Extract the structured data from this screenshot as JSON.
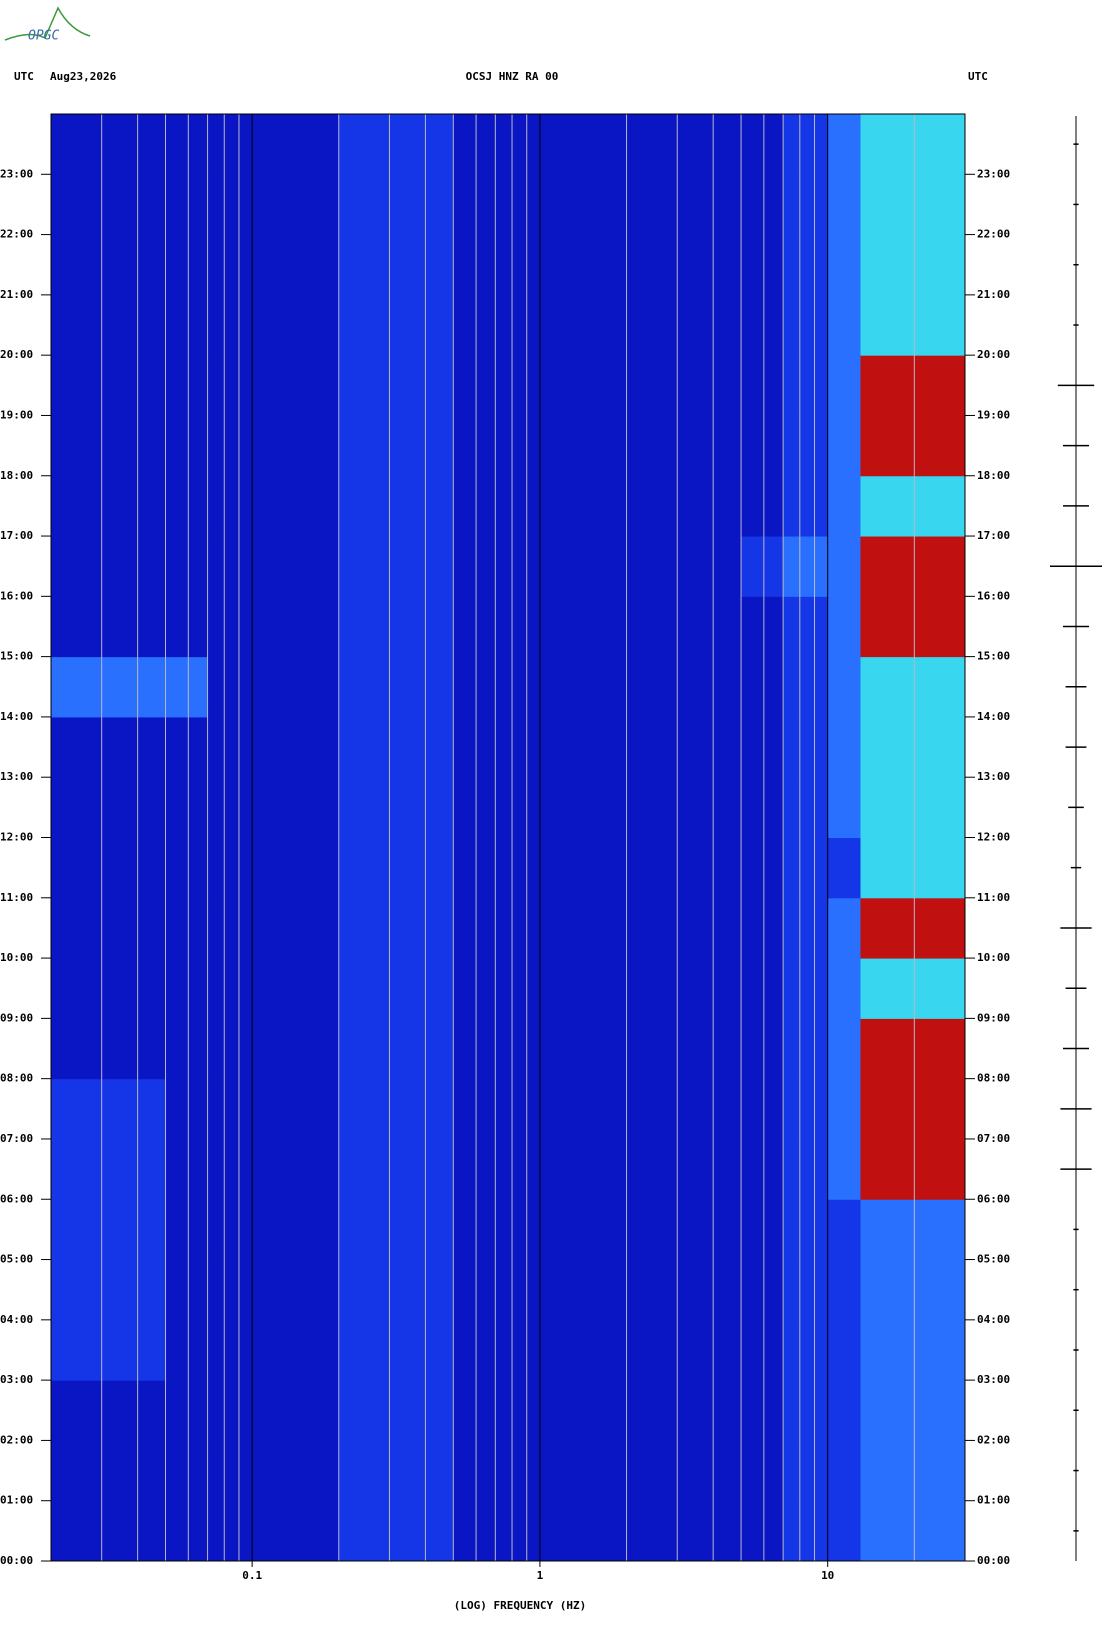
{
  "chart_data": {
    "type": "spectrogram",
    "logo": "OPGC",
    "left_label": "UTC",
    "date": "Aug23,2026",
    "title": "OCSJ HNZ RA 00",
    "right_label": "UTC",
    "xlabel": "(LOG) FREQUENCY (HZ)",
    "xscale": "log",
    "xlim": [
      0.02,
      30
    ],
    "xticks": [
      0.1,
      1,
      10
    ],
    "xgrid_minor": [
      0.03,
      0.04,
      0.05,
      0.06,
      0.07,
      0.08,
      0.09,
      0.2,
      0.3,
      0.4,
      0.5,
      0.6,
      0.7,
      0.8,
      0.9,
      2,
      3,
      4,
      5,
      6,
      7,
      8,
      9,
      20
    ],
    "ylim": [
      0,
      24
    ],
    "yticks": [
      {
        "value": 0,
        "label": "00:00"
      },
      {
        "value": 1,
        "label": "01:00"
      },
      {
        "value": 2,
        "label": "02:00"
      },
      {
        "value": 3,
        "label": "03:00"
      },
      {
        "value": 4,
        "label": "04:00"
      },
      {
        "value": 5,
        "label": "05:00"
      },
      {
        "value": 6,
        "label": "06:00"
      },
      {
        "value": 7,
        "label": "07:00"
      },
      {
        "value": 8,
        "label": "08:00"
      },
      {
        "value": 9,
        "label": "09:00"
      },
      {
        "value": 10,
        "label": "10:00"
      },
      {
        "value": 11,
        "label": "11:00"
      },
      {
        "value": 12,
        "label": "12:00"
      },
      {
        "value": 13,
        "label": "13:00"
      },
      {
        "value": 14,
        "label": "14:00"
      },
      {
        "value": 15,
        "label": "15:00"
      },
      {
        "value": 16,
        "label": "16:00"
      },
      {
        "value": 17,
        "label": "17:00"
      },
      {
        "value": 18,
        "label": "18:00"
      },
      {
        "value": 19,
        "label": "19:00"
      },
      {
        "value": 20,
        "label": "20:00"
      },
      {
        "value": 21,
        "label": "21:00"
      },
      {
        "value": 22,
        "label": "22:00"
      },
      {
        "value": 23,
        "label": "23:00"
      }
    ],
    "band_edges": [
      0.02,
      0.05,
      0.07,
      0.2,
      0.3,
      0.5,
      5,
      7,
      10,
      13,
      20,
      30
    ],
    "colors": [
      "#0a16c4",
      "#1436e6",
      "#2a70ff",
      "#38d6ef",
      "#c01010"
    ],
    "z": [
      [
        0,
        0,
        0,
        1,
        1,
        0,
        0,
        1,
        1,
        2,
        2
      ],
      [
        0,
        0,
        0,
        1,
        1,
        0,
        0,
        1,
        1,
        2,
        2
      ],
      [
        0,
        0,
        0,
        1,
        1,
        0,
        0,
        1,
        1,
        2,
        2
      ],
      [
        1,
        0,
        0,
        1,
        1,
        0,
        0,
        1,
        1,
        2,
        2
      ],
      [
        1,
        0,
        0,
        1,
        1,
        0,
        0,
        1,
        1,
        2,
        2
      ],
      [
        1,
        0,
        0,
        1,
        1,
        0,
        0,
        1,
        1,
        2,
        2
      ],
      [
        1,
        0,
        0,
        1,
        1,
        0,
        0,
        1,
        2,
        4,
        4
      ],
      [
        1,
        0,
        0,
        1,
        1,
        0,
        0,
        1,
        2,
        4,
        4
      ],
      [
        0,
        0,
        0,
        1,
        1,
        0,
        0,
        1,
        2,
        4,
        4
      ],
      [
        0,
        0,
        0,
        1,
        1,
        0,
        0,
        1,
        2,
        3,
        3
      ],
      [
        0,
        0,
        0,
        1,
        1,
        0,
        0,
        1,
        2,
        4,
        4
      ],
      [
        0,
        0,
        0,
        1,
        1,
        0,
        0,
        1,
        1,
        3,
        3
      ],
      [
        0,
        0,
        0,
        1,
        1,
        0,
        0,
        1,
        2,
        3,
        3
      ],
      [
        0,
        0,
        0,
        1,
        1,
        0,
        0,
        1,
        2,
        3,
        3
      ],
      [
        2,
        2,
        0,
        1,
        1,
        0,
        0,
        1,
        2,
        3,
        3
      ],
      [
        0,
        0,
        0,
        1,
        1,
        0,
        0,
        1,
        2,
        4,
        4
      ],
      [
        0,
        0,
        0,
        1,
        1,
        0,
        1,
        2,
        2,
        4,
        4
      ],
      [
        0,
        0,
        0,
        1,
        1,
        0,
        0,
        1,
        2,
        3,
        3
      ],
      [
        0,
        0,
        0,
        1,
        1,
        0,
        0,
        1,
        2,
        4,
        4
      ],
      [
        0,
        0,
        0,
        1,
        1,
        0,
        0,
        1,
        2,
        4,
        4
      ],
      [
        0,
        0,
        0,
        1,
        1,
        0,
        0,
        1,
        2,
        3,
        3
      ],
      [
        0,
        0,
        0,
        1,
        1,
        0,
        0,
        1,
        2,
        3,
        3
      ],
      [
        0,
        0,
        0,
        1,
        1,
        0,
        0,
        1,
        2,
        3,
        3
      ],
      [
        0,
        0,
        0,
        1,
        1,
        0,
        0,
        1,
        2,
        3,
        3
      ]
    ],
    "trace": [
      0.1,
      0.1,
      0.1,
      0.1,
      0.1,
      0.1,
      0.6,
      0.6,
      0.5,
      0.4,
      0.6,
      0.2,
      0.3,
      0.4,
      0.4,
      0.5,
      1.0,
      0.5,
      0.5,
      0.7,
      0.1,
      0.1,
      0.1,
      0.1
    ]
  }
}
